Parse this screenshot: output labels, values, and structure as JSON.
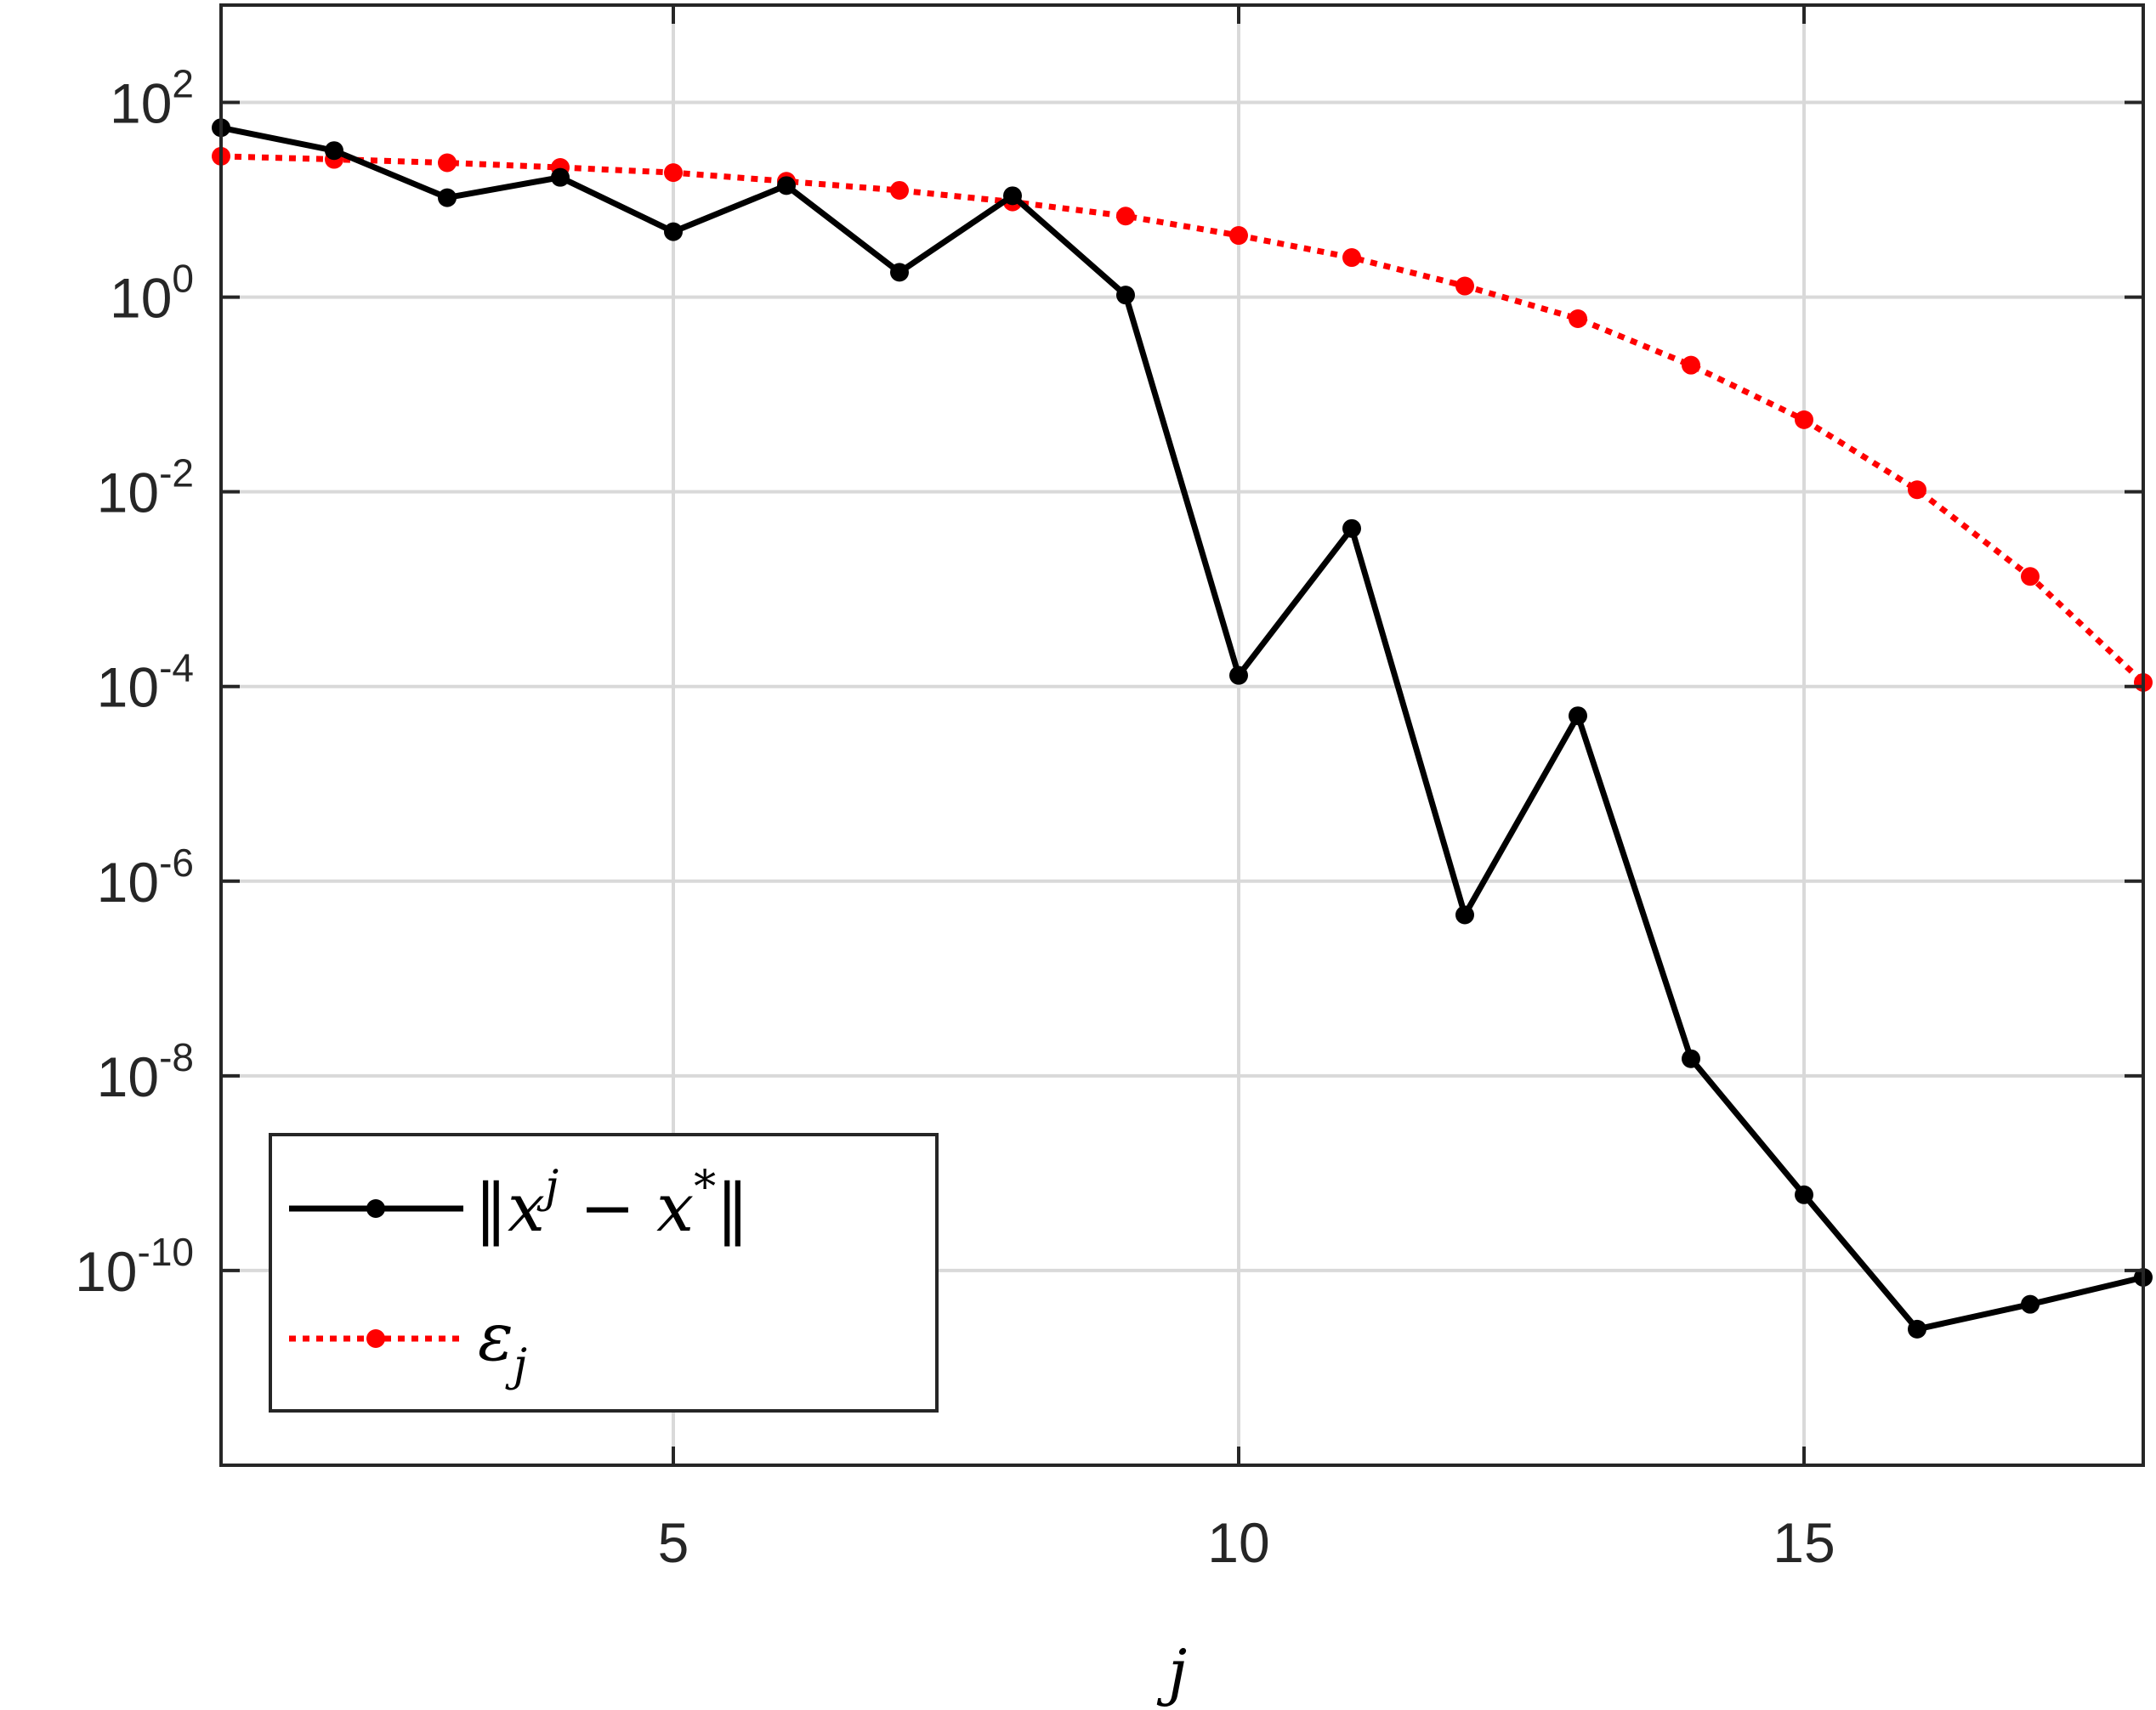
{
  "chart_data": {
    "type": "line",
    "xlabel": "j",
    "y_scale": "log",
    "xlim": [
      1,
      18
    ],
    "ylim": [
      1e-12,
      1000
    ],
    "grid": true,
    "legend_placement": "bottom-left",
    "x_ticks": [
      5,
      10,
      15
    ],
    "x_tick_labels": [
      "5",
      "10",
      "15"
    ],
    "y_ticks": [
      {
        "value": 100,
        "base": "10",
        "exp": "2"
      },
      {
        "value": 1,
        "base": "10",
        "exp": "0"
      },
      {
        "value": 0.01,
        "base": "10",
        "exp": "-2"
      },
      {
        "value": 0.0001,
        "base": "10",
        "exp": "-4"
      },
      {
        "value": 1e-06,
        "base": "10",
        "exp": "-6"
      },
      {
        "value": 1e-08,
        "base": "10",
        "exp": "-8"
      },
      {
        "value": 1e-10,
        "base": "10",
        "exp": "-10"
      }
    ],
    "series": [
      {
        "name": "‖x^j − x*‖",
        "color": "#000000",
        "line_style": "solid",
        "marker": "dot",
        "x": [
          1,
          2,
          3,
          4,
          5,
          6,
          7,
          8,
          9,
          10,
          11,
          12,
          13,
          14,
          15,
          16,
          17,
          18
        ],
        "y": [
          55,
          32,
          10.5,
          17,
          4.7,
          14,
          1.8,
          11,
          1.05,
          0.00013,
          0.0042,
          4.5e-07,
          5e-05,
          1.5e-08,
          6e-10,
          2.5e-11,
          4.5e-11,
          8.5e-11
        ]
      },
      {
        "name": "ε_j",
        "color": "#ff0000",
        "line_style": "dotted",
        "marker": "dot",
        "x": [
          1,
          2,
          3,
          4,
          5,
          6,
          7,
          8,
          9,
          10,
          11,
          12,
          13,
          14,
          15,
          16,
          17,
          18
        ],
        "y": [
          28,
          26,
          24,
          21.5,
          19,
          15.5,
          12.5,
          9.5,
          6.8,
          4.3,
          2.55,
          1.3,
          0.6,
          0.2,
          0.055,
          0.0105,
          0.00135,
          0.00011
        ]
      }
    ]
  },
  "legend": {
    "entries": [
      {
        "label_main": "‖x",
        "label_sup": "j",
        "label_rest": " − x",
        "label_star": "*",
        "label_end": "‖"
      },
      {
        "label_main": "ε",
        "label_sub": "j"
      }
    ]
  }
}
